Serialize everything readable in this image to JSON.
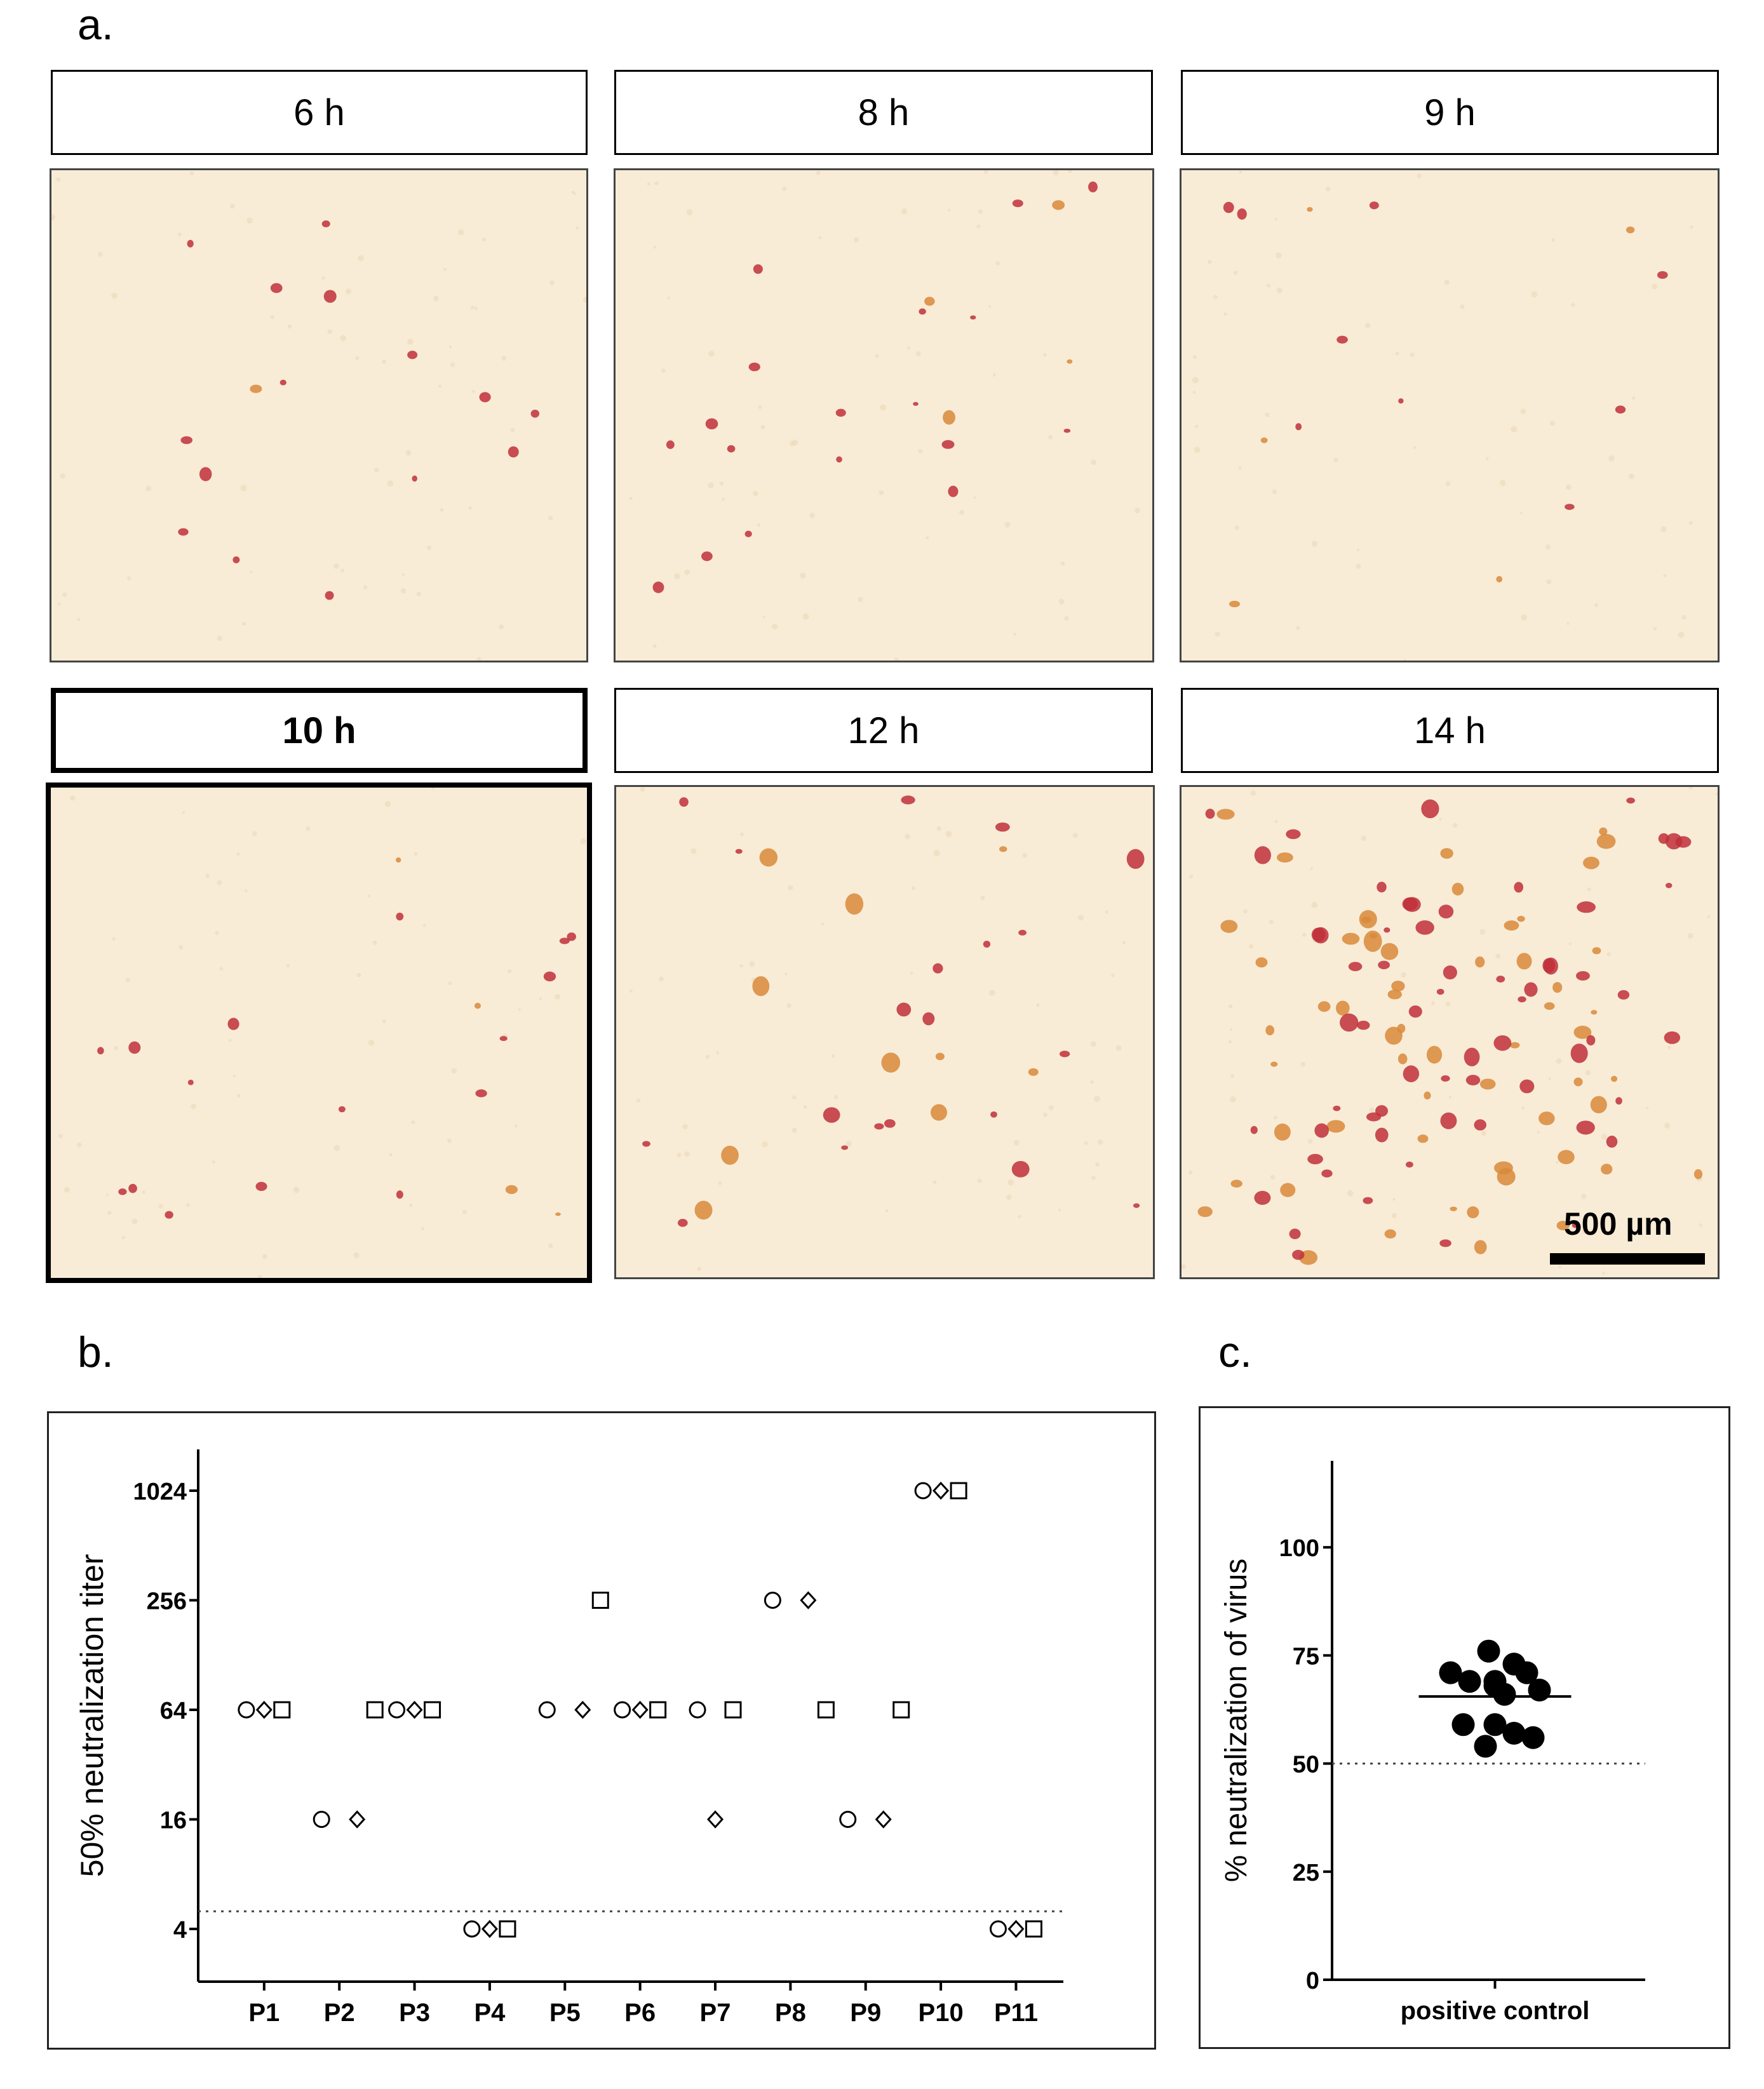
{
  "panels": {
    "a": "a.",
    "b": "b.",
    "c": "c."
  },
  "time_labels": [
    "6 h",
    "8 h",
    "9 h",
    "10 h",
    "12 h",
    "14 h"
  ],
  "highlighted_time": "10 h",
  "scale_bar_label": "500 µm",
  "colors": {
    "background_tissue": "#f8ecd7",
    "stain_red": "#c0303a",
    "stain_orange": "#d98a3a",
    "marker_fill": "#000000"
  },
  "chart_data": [
    {
      "type": "scatter",
      "panel": "b",
      "ylabel": "50% neutralization titer",
      "xlabel": "",
      "y_scale": "log2",
      "ylim": [
        2.5,
        1800
      ],
      "y_ticks": [
        "4",
        "16",
        "64",
        "256",
        "1024"
      ],
      "y_tick_values": [
        4,
        16,
        64,
        256,
        1024
      ],
      "categories": [
        "P1",
        "P2",
        "P3",
        "P4",
        "P5",
        "P6",
        "P7",
        "P8",
        "P9",
        "P10",
        "P11"
      ],
      "threshold": 5,
      "series": [
        {
          "marker": "circle",
          "values": [
            64,
            16,
            64,
            4,
            64,
            64,
            64,
            256,
            16,
            1024,
            4
          ]
        },
        {
          "marker": "diamond",
          "values": [
            64,
            16,
            64,
            4,
            64,
            64,
            16,
            256,
            16,
            1024,
            4
          ]
        },
        {
          "marker": "square",
          "values": [
            64,
            64,
            64,
            4,
            256,
            64,
            64,
            64,
            64,
            1024,
            4
          ]
        }
      ]
    },
    {
      "type": "scatter",
      "panel": "c",
      "ylabel": "% neutralization of virus",
      "categories": [
        "positive control"
      ],
      "ylim": [
        0,
        120
      ],
      "y_ticks": [
        "0",
        "25",
        "50",
        "75",
        "100"
      ],
      "y_tick_values": [
        0,
        25,
        50,
        75,
        100
      ],
      "threshold": 50,
      "mean": 65.5,
      "values": [
        76,
        73,
        71,
        71,
        69,
        69,
        68,
        67,
        66,
        59,
        59,
        57,
        56,
        54
      ]
    }
  ]
}
